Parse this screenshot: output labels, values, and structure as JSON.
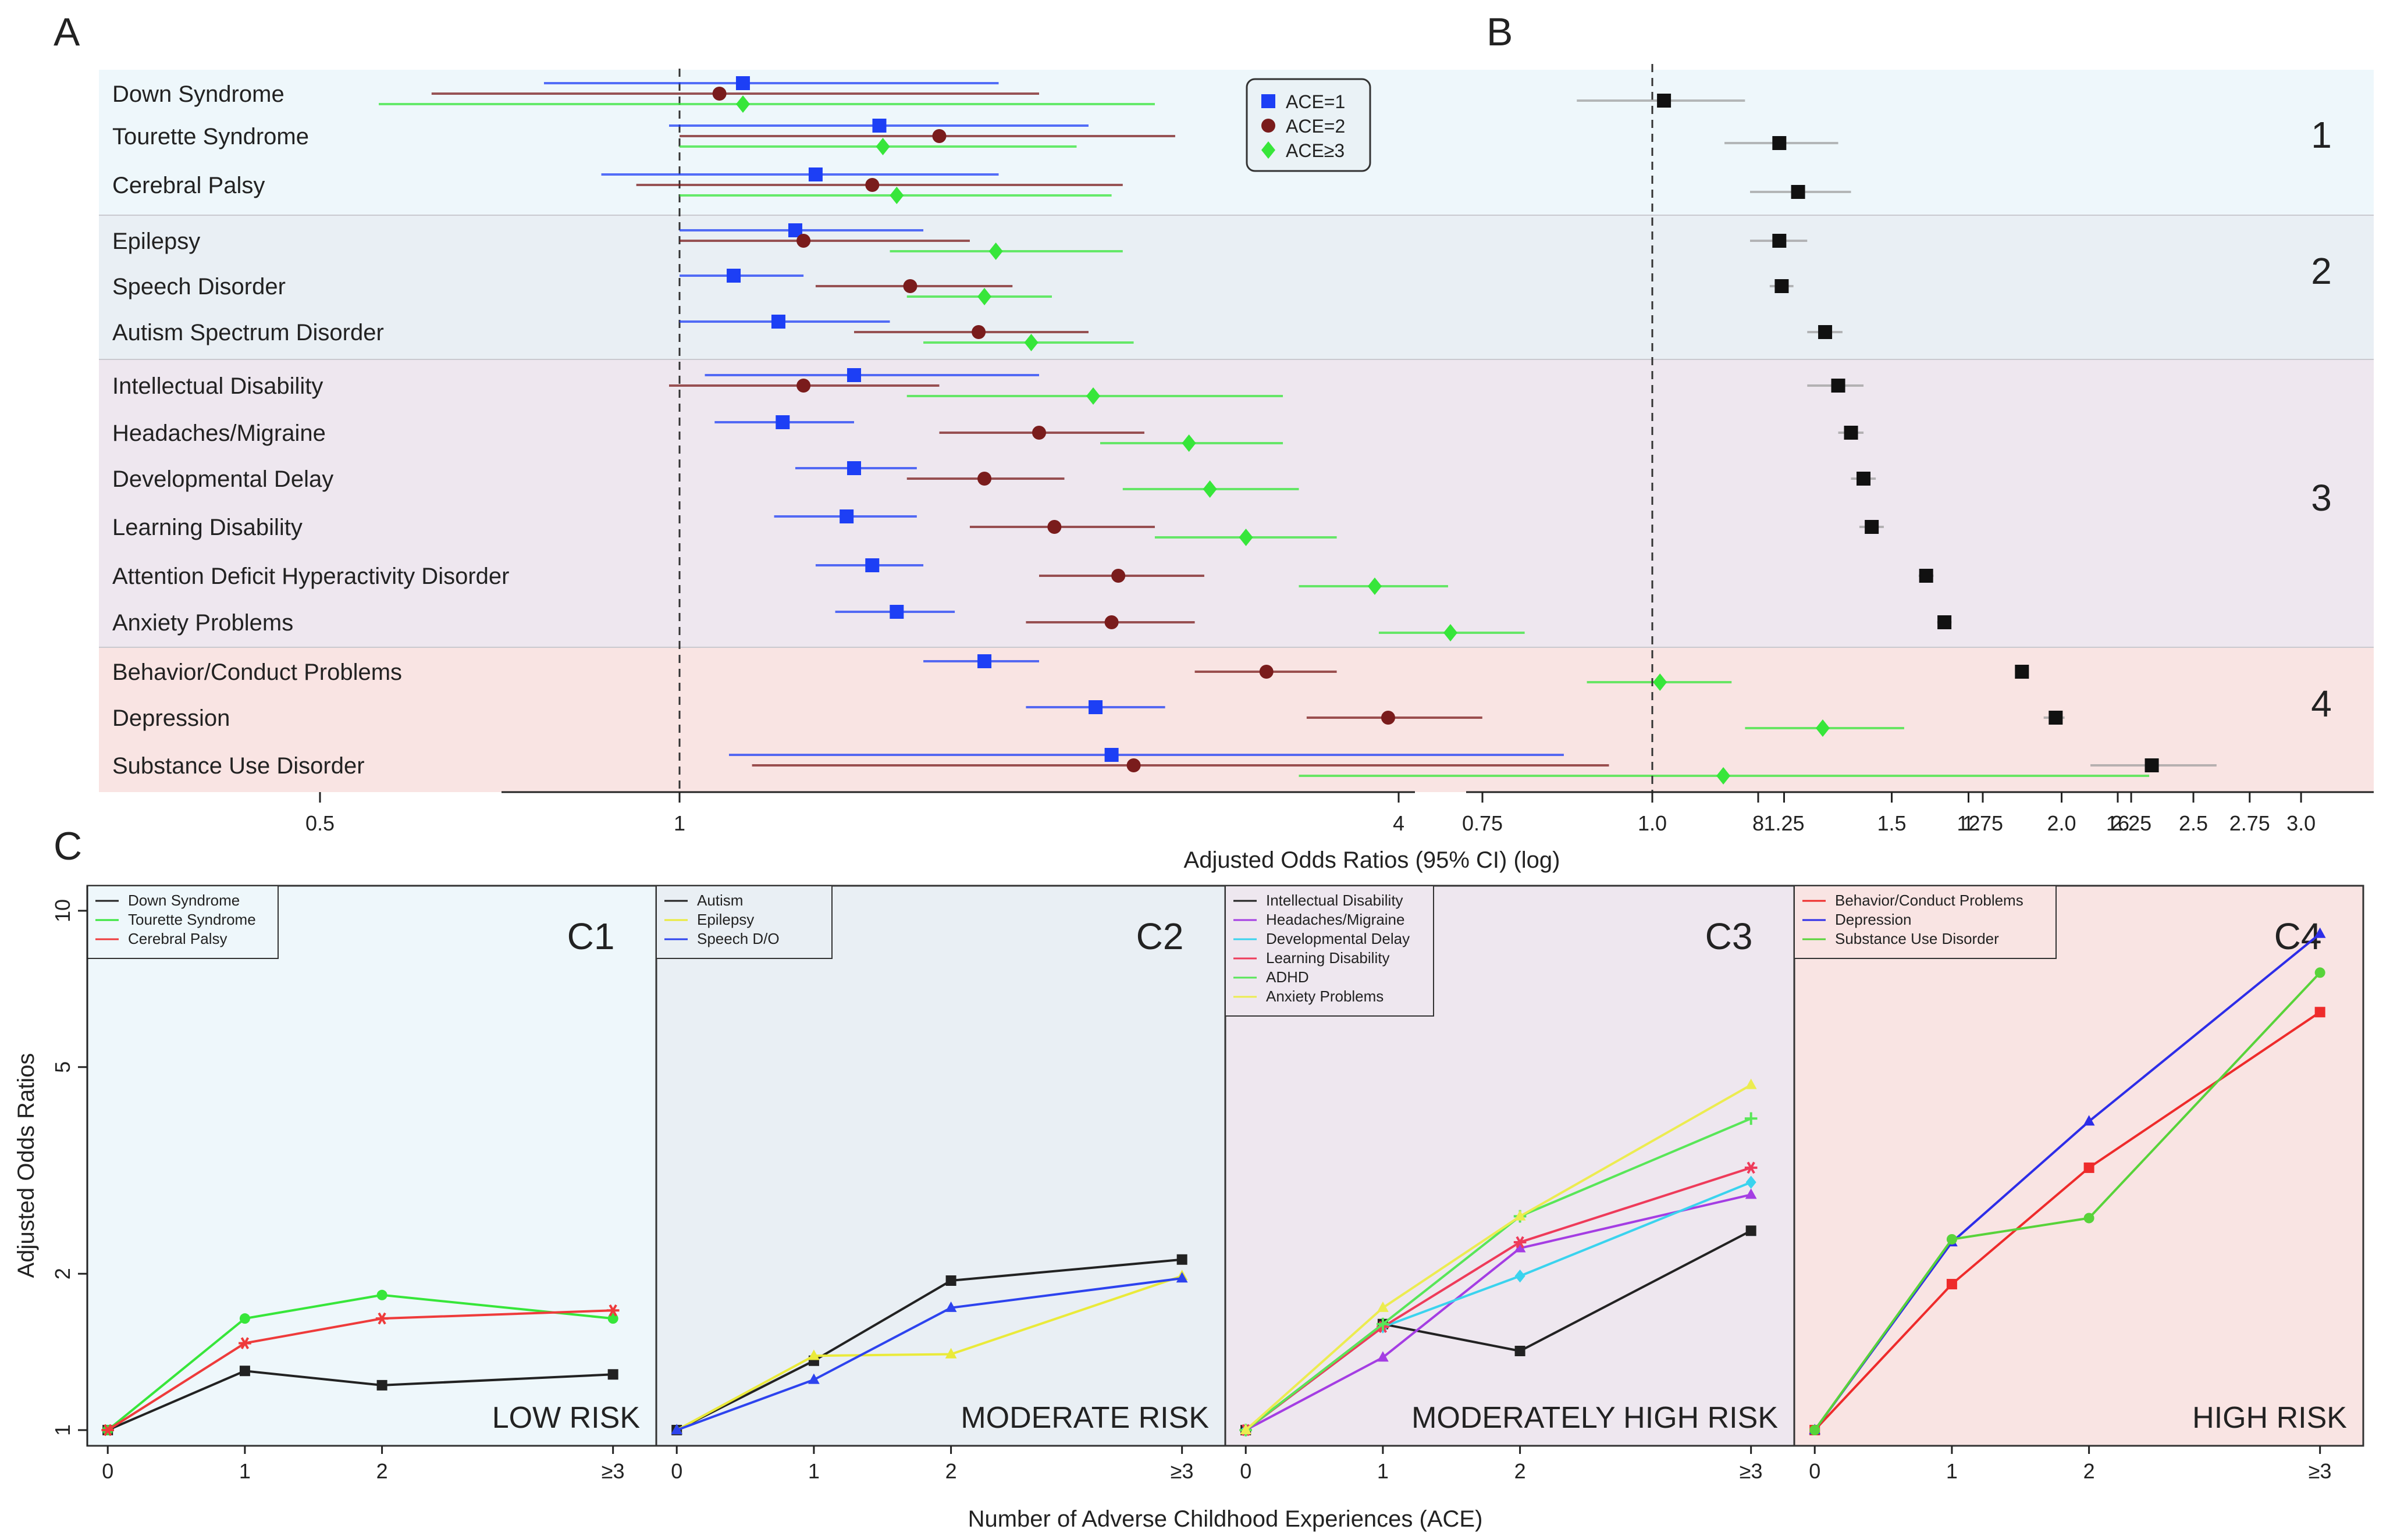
{
  "panel_letters": {
    "a": "A",
    "b": "B",
    "c": "C"
  },
  "chart_data": [
    {
      "id": "A",
      "type": "scatter",
      "title": "",
      "xlabel": "Adjusted Odds Ratios (95% CI) (log)",
      "xscale": "log2",
      "xlim": [
        0.4,
        22
      ],
      "xticks": [
        0.5,
        1,
        4,
        8,
        12,
        16
      ],
      "xtick_labels": [
        "0.5",
        "1",
        "4",
        "8",
        "12",
        "16"
      ],
      "band_labels": [
        "1",
        "2",
        "3",
        "4"
      ],
      "legend": {
        "position": "top-right",
        "entries": [
          "ACE=1",
          "ACE=2",
          "ACE≥3"
        ]
      },
      "series_colors": [
        "#1d3ff5",
        "#7a1c1c",
        "#37e63a"
      ],
      "rows": [
        {
          "label": "Down Syndrome",
          "band": 1,
          "est": [
            [
              1.13,
              0.77,
              1.85
            ],
            [
              1.08,
              0.62,
              2.0
            ],
            [
              1.13,
              0.56,
              2.5
            ]
          ]
        },
        {
          "label": "Tourette Syndrome",
          "band": 1,
          "est": [
            [
              1.47,
              0.98,
              2.2
            ],
            [
              1.65,
              1.0,
              2.6
            ],
            [
              1.48,
              1.0,
              2.15
            ]
          ]
        },
        {
          "label": "Cerebral Palsy",
          "band": 1,
          "est": [
            [
              1.3,
              0.86,
              1.85
            ],
            [
              1.45,
              0.92,
              2.35
            ],
            [
              1.52,
              1.0,
              2.3
            ]
          ]
        },
        {
          "label": "Epilepsy",
          "band": 2,
          "est": [
            [
              1.25,
              1.0,
              1.6
            ],
            [
              1.27,
              1.0,
              1.75
            ],
            [
              1.84,
              1.5,
              2.35
            ]
          ]
        },
        {
          "label": "Speech Disorder",
          "band": 2,
          "est": [
            [
              1.11,
              1.0,
              1.27
            ],
            [
              1.56,
              1.3,
              1.9
            ],
            [
              1.8,
              1.55,
              2.05
            ]
          ]
        },
        {
          "label": "Autism Spectrum Disorder",
          "band": 2,
          "est": [
            [
              1.21,
              1.0,
              1.5
            ],
            [
              1.78,
              1.4,
              2.2
            ],
            [
              1.97,
              1.6,
              2.4
            ]
          ]
        },
        {
          "label": "Intellectual Disability",
          "band": 3,
          "est": [
            [
              1.4,
              1.05,
              2.0
            ],
            [
              1.27,
              0.98,
              1.65
            ],
            [
              2.22,
              1.55,
              3.2
            ]
          ]
        },
        {
          "label": "Headaches/Migraine",
          "band": 3,
          "est": [
            [
              1.22,
              1.07,
              1.4
            ],
            [
              2.0,
              1.65,
              2.45
            ],
            [
              2.67,
              2.25,
              3.2
            ]
          ]
        },
        {
          "label": "Developmental Delay",
          "band": 3,
          "est": [
            [
              1.4,
              1.25,
              1.58
            ],
            [
              1.8,
              1.55,
              2.1
            ],
            [
              2.78,
              2.35,
              3.3
            ]
          ]
        },
        {
          "label": "Learning Disability",
          "band": 3,
          "est": [
            [
              1.38,
              1.2,
              1.58
            ],
            [
              2.06,
              1.75,
              2.5
            ],
            [
              2.98,
              2.5,
              3.55
            ]
          ]
        },
        {
          "label": "Attention Deficit Hyperactivity Disorder",
          "band": 3,
          "est": [
            [
              1.45,
              1.3,
              1.6
            ],
            [
              2.33,
              2.0,
              2.75
            ],
            [
              3.82,
              3.3,
              4.4
            ]
          ]
        },
        {
          "label": "Anxiety Problems",
          "band": 3,
          "est": [
            [
              1.52,
              1.35,
              1.7
            ],
            [
              2.3,
              1.95,
              2.7
            ],
            [
              4.42,
              3.85,
              5.1
            ]
          ]
        },
        {
          "label": "Behavior/Conduct Problems",
          "band": 4,
          "est": [
            [
              1.8,
              1.6,
              2.0
            ],
            [
              3.1,
              2.7,
              3.55
            ],
            [
              6.62,
              5.75,
              7.6
            ]
          ]
        },
        {
          "label": "Depression",
          "band": 4,
          "est": [
            [
              2.23,
              1.95,
              2.55
            ],
            [
              3.92,
              3.35,
              4.7
            ],
            [
              9.06,
              7.8,
              10.6
            ]
          ]
        },
        {
          "label": "Substance Use Disorder",
          "band": 4,
          "est": [
            [
              2.3,
              1.1,
              5.5
            ],
            [
              2.4,
              1.15,
              6.0
            ],
            [
              7.48,
              3.3,
              17.0
            ]
          ]
        }
      ]
    },
    {
      "id": "B",
      "type": "scatter",
      "title": "",
      "xlabel": "Adjusted Odds Ratios (95% CI) (log)",
      "xscale": "log",
      "xlim": [
        0.75,
        3.0
      ],
      "xticks": [
        0.75,
        1.0,
        1.25,
        1.5,
        1.75,
        2.0,
        2.25,
        2.5,
        2.75,
        3.0
      ],
      "xtick_labels": [
        "0.75",
        "1.0",
        "1.25",
        "1.5",
        "1.75",
        "2.0",
        "2.25",
        "2.5",
        "2.75",
        "3.0"
      ],
      "color": "#111111",
      "rows": [
        {
          "label": "Down Syndrome",
          "est": [
            1.02,
            0.88,
            1.17
          ]
        },
        {
          "label": "Tourette Syndrome",
          "est": [
            1.24,
            1.13,
            1.37
          ]
        },
        {
          "label": "Cerebral Palsy",
          "est": [
            1.28,
            1.18,
            1.4
          ]
        },
        {
          "label": "Epilepsy",
          "est": [
            1.24,
            1.18,
            1.3
          ]
        },
        {
          "label": "Speech Disorder",
          "est": [
            1.245,
            1.22,
            1.27
          ]
        },
        {
          "label": "Autism Spectrum Disorder",
          "est": [
            1.34,
            1.3,
            1.38
          ]
        },
        {
          "label": "Intellectual Disability",
          "est": [
            1.37,
            1.3,
            1.43
          ]
        },
        {
          "label": "Headaches/Migraine",
          "est": [
            1.4,
            1.37,
            1.43
          ]
        },
        {
          "label": "Developmental Delay",
          "est": [
            1.43,
            1.4,
            1.46
          ]
        },
        {
          "label": "Learning Disability",
          "est": [
            1.45,
            1.42,
            1.48
          ]
        },
        {
          "label": "Attention Deficit Hyperactivity Disorder",
          "est": [
            1.59,
            1.57,
            1.61
          ]
        },
        {
          "label": "Anxiety Problems",
          "est": [
            1.64,
            1.62,
            1.66
          ]
        },
        {
          "label": "Behavior/Conduct Problems",
          "est": [
            1.87,
            1.85,
            1.89
          ]
        },
        {
          "label": "Depression",
          "est": [
            1.98,
            1.94,
            2.01
          ]
        },
        {
          "label": "Substance Use Disorder",
          "est": [
            2.33,
            2.1,
            2.6
          ]
        }
      ]
    },
    {
      "id": "C",
      "type": "line",
      "xlabel": "Number of Adverse Childhood Experiences (ACE)",
      "ylabel": "Adjusted Odds Ratios",
      "yscale": "log",
      "ylim": [
        0.95,
        10.5
      ],
      "yticks": [
        1,
        2,
        5,
        10
      ],
      "ytick_labels": [
        "1",
        "2",
        "5",
        "10"
      ],
      "categories": [
        "0",
        "1",
        "2",
        "≥3"
      ],
      "panels": [
        {
          "title": "C1",
          "risk_label": "LOW RISK",
          "legend_position": "top-left",
          "series": [
            {
              "name": "Down Syndrome",
              "color": "#222222",
              "marker": "square",
              "values": [
                1,
                1.3,
                1.22,
                1.28
              ]
            },
            {
              "name": "Tourette Syndrome",
              "color": "#37e63a",
              "marker": "circle",
              "values": [
                1,
                1.64,
                1.82,
                1.64
              ]
            },
            {
              "name": "Cerebral Palsy",
              "color": "#ee3b3b",
              "marker": "star",
              "values": [
                1,
                1.47,
                1.64,
                1.7
              ]
            }
          ]
        },
        {
          "title": "C2",
          "risk_label": "MODERATE RISK",
          "legend_position": "top-left",
          "series": [
            {
              "name": "Autism",
              "color": "#222222",
              "marker": "square",
              "values": [
                1,
                1.36,
                1.94,
                2.13
              ]
            },
            {
              "name": "Epilepsy",
              "color": "#eaea3a",
              "marker": "triangle",
              "values": [
                1,
                1.39,
                1.4,
                1.98
              ]
            },
            {
              "name": "Speech D/O",
              "color": "#2d43ee",
              "marker": "triangle",
              "values": [
                1,
                1.25,
                1.72,
                1.96
              ]
            }
          ]
        },
        {
          "title": "C3",
          "risk_label": "MODERATELY HIGH RISK",
          "legend_position": "top-left",
          "series": [
            {
              "name": "Intellectual Disability",
              "color": "#222222",
              "marker": "square",
              "values": [
                1,
                1.6,
                1.42,
                2.42
              ]
            },
            {
              "name": "Headaches/Migraine",
              "color": "#a43de3",
              "marker": "triangle",
              "values": [
                1,
                1.38,
                2.24,
                2.84
              ]
            },
            {
              "name": "Developmental Delay",
              "color": "#3ad3ee",
              "marker": "diamond",
              "values": [
                1,
                1.58,
                1.98,
                3.0
              ]
            },
            {
              "name": "Learning Disability",
              "color": "#ee3b5a",
              "marker": "star",
              "values": [
                1,
                1.58,
                2.3,
                3.2
              ]
            },
            {
              "name": "ADHD",
              "color": "#58e658",
              "marker": "plus",
              "values": [
                1,
                1.6,
                2.58,
                3.98
              ]
            },
            {
              "name": "Anxiety Problems",
              "color": "#ecec50",
              "marker": "triangle",
              "values": [
                1,
                1.72,
                2.58,
                4.62
              ]
            }
          ]
        },
        {
          "title": "C4",
          "risk_label": "HIGH RISK",
          "legend_position": "top-left",
          "series": [
            {
              "name": "Behavior/Conduct Problems",
              "color": "#ee2b2b",
              "marker": "square",
              "values": [
                1,
                1.91,
                3.2,
                6.38
              ]
            },
            {
              "name": "Depression",
              "color": "#2d2de8",
              "marker": "triangle",
              "values": [
                1,
                2.3,
                3.93,
                9.03
              ]
            },
            {
              "name": "Substance Use Disorder",
              "color": "#58d33a",
              "marker": "circle",
              "values": [
                1,
                2.33,
                2.56,
                7.6
              ]
            }
          ]
        }
      ]
    }
  ]
}
